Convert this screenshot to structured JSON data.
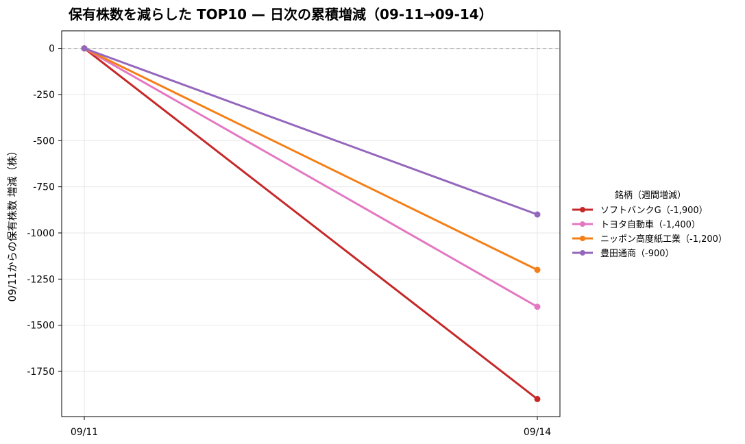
{
  "chart_data": {
    "type": "line",
    "title": "保有株数を減らした TOP10 — 日次の累積増減（09-11→09-14）",
    "xlabel": "",
    "ylabel": "09/11からの保有株数 増減（株）",
    "x": [
      "09/11",
      "09/14"
    ],
    "ylim": [
      -1995,
      95
    ],
    "yticks": [
      0,
      -250,
      -500,
      -750,
      -1000,
      -1250,
      -1500,
      -1750
    ],
    "grid": true,
    "legend": {
      "title": "銘柄（週間増減）",
      "placement": "outside-right"
    },
    "series": [
      {
        "name": "ソフトバンクG（-1,900）",
        "values": [
          0,
          -1900
        ],
        "color": "#c62828"
      },
      {
        "name": "トヨタ自動車（-1,400）",
        "values": [
          0,
          -1400
        ],
        "color": "#e377c2"
      },
      {
        "name": "ニッポン高度紙工業（-1,200）",
        "values": [
          0,
          -1200
        ],
        "color": "#f57f17"
      },
      {
        "name": "豊田通商（-900）",
        "values": [
          0,
          -900
        ],
        "color": "#9467bd"
      }
    ]
  }
}
